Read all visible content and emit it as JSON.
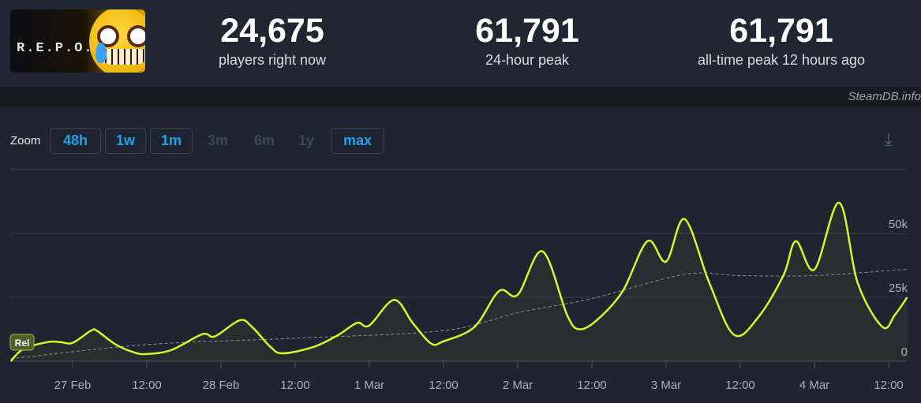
{
  "game": {
    "logo_text": "R.E.P.O."
  },
  "stats": [
    {
      "value": "24,675",
      "label": "players right now"
    },
    {
      "value": "61,791",
      "label": "24-hour peak"
    },
    {
      "value": "61,791",
      "label": "all-time peak 12 hours ago"
    }
  ],
  "credit": "SteamDB.info",
  "zoom": {
    "label": "Zoom",
    "buttons": [
      {
        "label": "48h",
        "enabled": true
      },
      {
        "label": "1w",
        "enabled": true
      },
      {
        "label": "1m",
        "enabled": true
      },
      {
        "label": "3m",
        "enabled": false
      },
      {
        "label": "6m",
        "enabled": false
      },
      {
        "label": "1y",
        "enabled": false
      },
      {
        "label": "max",
        "enabled": true
      }
    ],
    "download_icon": "download-icon"
  },
  "chart_data": {
    "type": "line",
    "xlabel": "",
    "ylabel": "",
    "ylim": [
      0,
      62000
    ],
    "y_ticks": [
      "0",
      "25k",
      "50k"
    ],
    "y_tick_values": [
      0,
      25000,
      50000
    ],
    "x_ticks": [
      "27 Feb",
      "12:00",
      "28 Feb",
      "12:00",
      "1 Mar",
      "12:00",
      "2 Mar",
      "12:00",
      "3 Mar",
      "12:00",
      "4 Mar",
      "12:00"
    ],
    "x_tick_times": [
      "27 Feb 00:00",
      "27 Feb 12:00",
      "28 Feb 00:00",
      "28 Feb 12:00",
      "1 Mar 00:00",
      "1 Mar 12:00",
      "2 Mar 00:00",
      "2 Mar 12:00",
      "3 Mar 00:00",
      "3 Mar 12:00",
      "4 Mar 00:00",
      "4 Mar 12:00"
    ],
    "grid": true,
    "line_color": "#d8f52a",
    "marker_label": "Rel",
    "series": [
      {
        "x": [
          "26 Feb 14:00",
          "26 Feb 16:00",
          "26 Feb 20:00",
          "26 Feb 22:00",
          "27 Feb 00:00",
          "27 Feb 03:00",
          "27 Feb 04:00",
          "27 Feb 07:00",
          "27 Feb 10:00",
          "27 Feb 12:00",
          "27 Feb 16:00",
          "27 Feb 21:00",
          "27 Feb 23:00",
          "28 Feb 03:00",
          "28 Feb 05:00",
          "28 Feb 08:00",
          "28 Feb 10:00",
          "28 Feb 15:00",
          "28 Feb 19:00",
          "28 Feb 22:00",
          "1 Mar 00:00",
          "1 Mar 04:00",
          "1 Mar 07:00",
          "1 Mar 10:00",
          "1 Mar 12:00",
          "1 Mar 17:00",
          "1 Mar 21:00",
          "2 Mar 00:00",
          "2 Mar 04:00",
          "2 Mar 08:00",
          "2 Mar 10:00",
          "2 Mar 13:00",
          "2 Mar 17:00",
          "2 Mar 21:00",
          "3 Mar 00:00",
          "3 Mar 03:00",
          "3 Mar 07:00",
          "3 Mar 11:00",
          "3 Mar 15:00",
          "3 Mar 19:00",
          "3 Mar 21:00",
          "4 Mar 00:00",
          "4 Mar 04:00",
          "4 Mar 07:00",
          "4 Mar 11:00",
          "4 Mar 13:00",
          "4 Mar 15:00"
        ],
        "values": [
          0,
          4700,
          7500,
          7500,
          7200,
          12000,
          11800,
          6500,
          3400,
          2800,
          4400,
          10600,
          9700,
          16000,
          13500,
          5600,
          3100,
          5600,
          10300,
          15000,
          14000,
          24000,
          15000,
          6900,
          7800,
          13400,
          27500,
          26000,
          43000,
          18000,
          12500,
          16500,
          27500,
          47000,
          39000,
          55600,
          30600,
          10300,
          17500,
          33700,
          47000,
          35900,
          62000,
          30600,
          13400,
          18100,
          25000
        ]
      },
      {
        "style": "dashed",
        "x": [
          "26 Feb 14:00",
          "27 Feb 12:00",
          "28 Feb 12:00",
          "1 Mar 12:00",
          "2 Mar 00:00",
          "2 Mar 12:00",
          "3 Mar 03:00",
          "3 Mar 12:00",
          "4 Mar 00:00",
          "4 Mar 15:00"
        ],
        "values": [
          1000,
          6500,
          9000,
          12000,
          19000,
          24500,
          34000,
          33500,
          33500,
          36000
        ]
      }
    ]
  }
}
